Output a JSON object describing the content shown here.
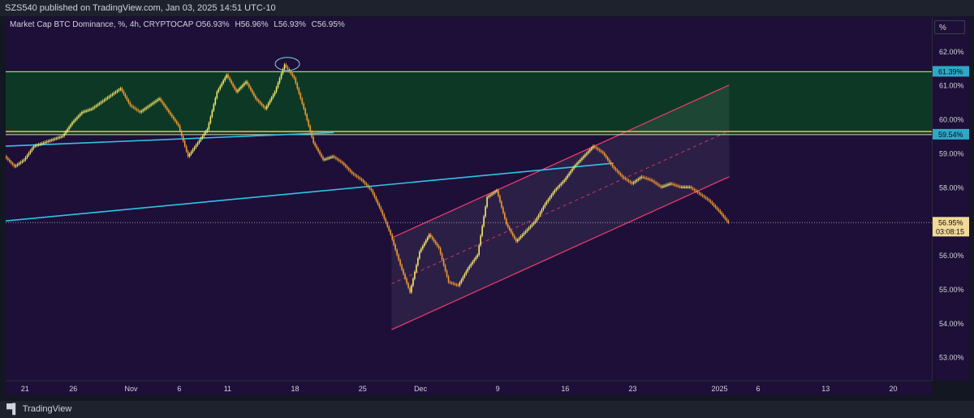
{
  "header": {
    "publisher": "SZS540 published on TradingView.com, Jan 03, 2025 14:51 UTC-10"
  },
  "legend": {
    "title": "Market Cap BTC Dominance, %, 4h, CRYPTOCAP",
    "open": "O56.93%",
    "high": "H56.96%",
    "low": "L56.93%",
    "close": "C56.95%"
  },
  "scale_button": "%",
  "branding": {
    "logo_text": "TradingView"
  },
  "colors": {
    "background": "#1d0f37",
    "resistance_zone": "#0d3b25",
    "zone_line": "#a6d56a",
    "support_line": "#f2b035",
    "trend_line": "#2ec4e8",
    "channel": "#f23d6d",
    "candle_up": "#f7e96b",
    "candle_down": "#f39c2f"
  },
  "chart_data": {
    "type": "line",
    "title": "Market Cap BTC Dominance, %, 4h, CRYPTOCAP",
    "ylim": [
      52.3,
      63.0
    ],
    "y_ticks": [
      "62.00%",
      "61.00%",
      "60.00%",
      "59.00%",
      "58.00%",
      "57.00%",
      "56.00%",
      "55.00%",
      "54.00%",
      "53.00%"
    ],
    "y_tick_values": [
      62,
      61,
      60,
      59,
      58,
      57,
      56,
      55,
      54,
      53
    ],
    "x_ticks": [
      "21",
      "26",
      "Nov",
      "6",
      "11",
      "18",
      "25",
      "Dec",
      "9",
      "16",
      "23",
      "2025",
      "6",
      "13",
      "20"
    ],
    "x_tick_days": [
      -11,
      -6,
      0,
      5,
      10,
      17,
      24,
      30,
      38,
      45,
      52,
      61,
      65,
      72,
      79
    ],
    "xlim_days": [
      -13,
      83
    ],
    "x_unit": "days since Oct 01 2024",
    "price_series": {
      "x": [
        -13,
        -12,
        -11,
        -10,
        -9,
        -8,
        -7,
        -6,
        -5,
        -4,
        -3,
        -2,
        -1,
        0,
        1,
        2,
        3,
        4,
        5,
        6,
        7,
        8,
        9,
        10,
        11,
        12,
        13,
        14,
        15,
        16,
        17,
        18,
        19,
        20,
        21,
        22,
        23,
        24,
        25,
        26,
        27,
        28,
        29,
        30,
        31,
        32,
        33,
        34,
        35,
        36,
        37,
        38,
        39,
        40,
        41,
        42,
        43,
        44,
        45,
        46,
        47,
        48,
        49,
        50,
        51,
        52,
        53,
        54,
        55,
        56,
        57,
        58,
        59,
        60,
        61,
        62
      ],
      "values": [
        58.9,
        58.6,
        58.8,
        59.2,
        59.3,
        59.4,
        59.5,
        59.9,
        60.2,
        60.3,
        60.5,
        60.7,
        60.9,
        60.4,
        60.2,
        60.4,
        60.6,
        60.2,
        59.8,
        58.9,
        59.3,
        59.7,
        60.8,
        61.3,
        60.8,
        61.1,
        60.6,
        60.3,
        60.8,
        61.6,
        61.2,
        60.3,
        59.3,
        58.8,
        58.9,
        58.7,
        58.4,
        58.2,
        57.9,
        57.3,
        56.6,
        55.7,
        54.9,
        56.1,
        56.6,
        56.2,
        55.2,
        55.1,
        55.6,
        56.0,
        57.7,
        57.9,
        56.9,
        56.4,
        56.7,
        57.0,
        57.5,
        57.9,
        58.2,
        58.6,
        58.9,
        59.2,
        59.0,
        58.6,
        58.3,
        58.1,
        58.3,
        58.2,
        58.0,
        58.1,
        58.0,
        58.0,
        57.8,
        57.6,
        57.3,
        56.95
      ]
    },
    "horizontal_levels": [
      {
        "value": 61.39,
        "label": "61.39%"
      },
      {
        "value": 59.54,
        "label": "59.54%"
      },
      {
        "value": 59.63
      }
    ],
    "resistance_zone": {
      "from": 59.54,
      "to": 61.39
    },
    "trend_lines": [
      {
        "x1": -13,
        "y1": 57.0,
        "x2": 50,
        "y2": 58.7
      },
      {
        "x1": -13,
        "y1": 59.2,
        "x2": 21,
        "y2": 59.6
      }
    ],
    "ascending_channel": {
      "upper": {
        "x1": 27,
        "y1": 56.5,
        "x2": 62,
        "y2": 61.0
      },
      "lower": {
        "x1": 27,
        "y1": 53.8,
        "x2": 62,
        "y2": 58.3
      },
      "midline": {
        "x1": 27,
        "y1": 55.15,
        "x2": 62,
        "y2": 59.65
      }
    },
    "current_price": {
      "value": 56.95,
      "label": "56.95%",
      "countdown": "03:08:15"
    }
  }
}
